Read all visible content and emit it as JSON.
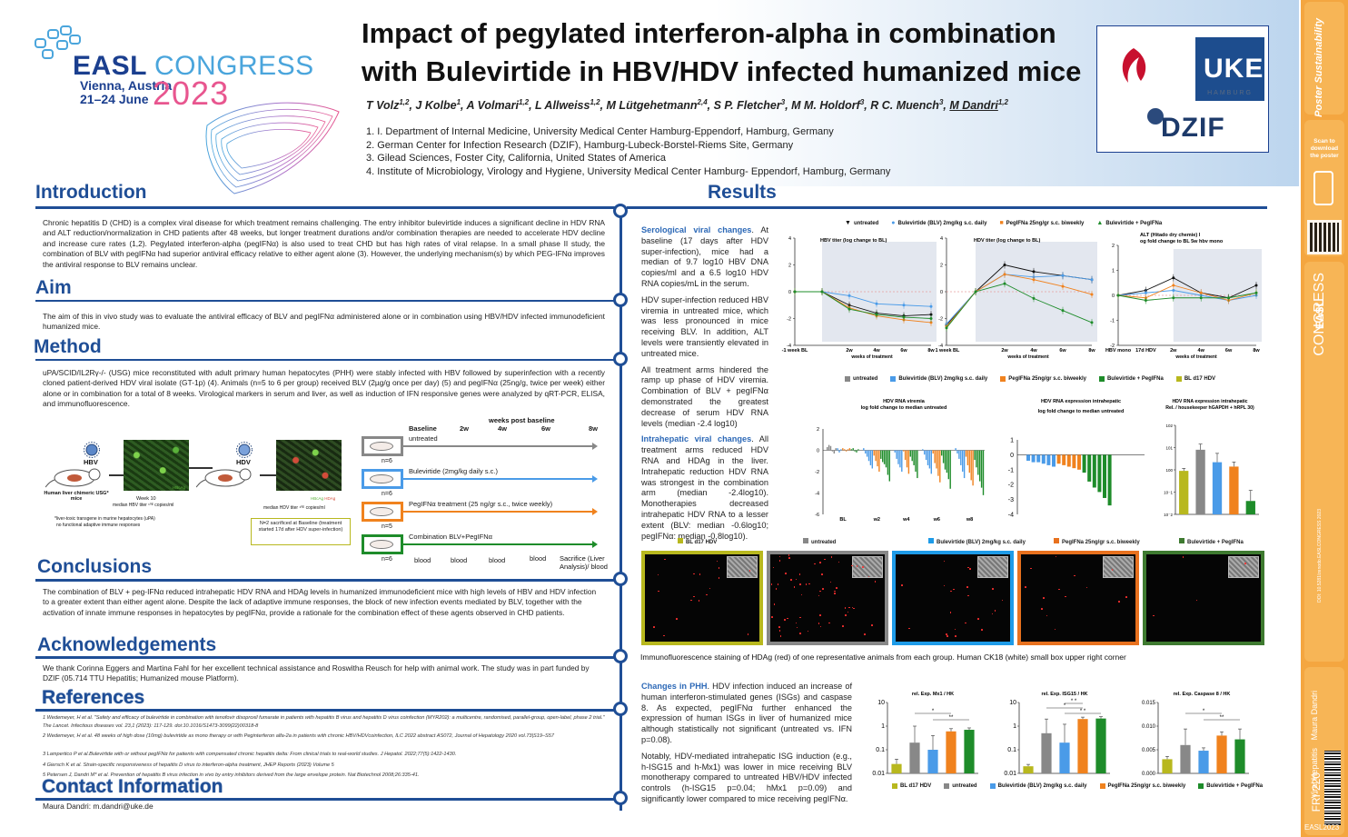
{
  "header": {
    "logo": {
      "brand": "EASL",
      "event": "CONGRESS",
      "city": "Vienna, Austria",
      "dates": "21–24 June",
      "year": "2023"
    },
    "title_line1": "Impact of pegylated interferon-alpha in combination",
    "title_line2": "with Bulevirtide in HBV/HDV infected humanized mice",
    "authors": [
      {
        "name": "T Volz",
        "sup": "1,2"
      },
      {
        "name": "J Kolbe",
        "sup": "1"
      },
      {
        "name": "A Volmari",
        "sup": "1,2"
      },
      {
        "name": "L Allweiss",
        "sup": "1,2"
      },
      {
        "name": "M Lütgehetmann",
        "sup": "2,4"
      },
      {
        "name": "S P. Fletcher",
        "sup": "3"
      },
      {
        "name": "M M. Holdorf",
        "sup": "3"
      },
      {
        "name": "R C. Muench",
        "sup": "3"
      },
      {
        "name": "M Dandri",
        "sup": "1,2"
      }
    ],
    "affiliations": [
      "1. I. Department of Internal Medicine, University Medical Center Hamburg-Eppendorf, Hamburg, Germany",
      "2. German Center for Infection Research (DZIF), Hamburg-Lubeck-Borstel-Riems Site, Germany",
      "3. Gilead Sciences, Foster City, California, United States of America",
      "4. Institute of Microbiology, Virology and Hygiene, University Medical Center Hamburg- Eppendorf, Hamburg, Germany"
    ],
    "partner_logos": {
      "uke": "UKE",
      "uke_sub": "HAMBURG",
      "dzif": "DZIF"
    }
  },
  "sidebar": {
    "poster_label": "Poster Sustainability",
    "scan_text": "Scan to download the poster",
    "congress": "CONGRESS",
    "easl": "EASL",
    "copyright": "DOI: 10.5281/zenodo.EASLCONGRESS 2023",
    "topic": "Viral Hepatitis",
    "presenter": "Maura Dandri",
    "code": "FRI-220",
    "footer": "EASL2023"
  },
  "sections": {
    "introduction": "Introduction",
    "aim": "Aim",
    "method": "Method",
    "conclusions": "Conclusions",
    "acknowledgements": "Acknowledgements",
    "references": "References",
    "contact": "Contact Information",
    "results": "Results"
  },
  "intro_text": "Chronic hepatitis D (CHD) is a complex viral disease for which treatment remains challenging. The entry inhibitor bulevirtide induces a significant decline in HDV RNA and ALT reduction/normalization in CHD patients after 48 weeks, but longer treatment durations and/or combination therapies are needed to accelerate HDV decline and increase cure rates (1,2). Pegylated interferon-alpha (pegIFNα) is also used to treat CHD but has high rates of viral relapse. In a small phase II study, the combination of BLV with pegIFNα had superior antiviral efficacy relative to either agent alone (3). However, the underlying mechanism(s) by which PEG-IFNα improves the antiviral response to BLV remains unclear.",
  "aim_text": "The aim of this in vivo study was to evaluate the antiviral efficacy of BLV and pegIFNα administered alone or in combination using HBV/HDV infected immunodeficient humanized mice.",
  "method_text": "uPA/SCID/IL2Rγ-/- (USG) mice reconstituted with adult primary human hepatocytes (PHH) were stably infected with HBV followed by superinfection with a recently cloned patient-derived HDV viral isolate (GT-1p) (4). Animals (n=5 to 6 per group) received BLV (2µg/g once per day) (5) and pegIFNα (25ng/g, twice per week) either alone or in combination for a total of 8 weeks. Virological markers in serum and liver, as well as induction of IFN responsive genes were analyzed by qRT-PCR, ELISA, and immunofluorescence.",
  "method_fig": {
    "hbv": "HBV",
    "hdv": "HDV",
    "mouse_label": "Human liver chimeric USG* mice",
    "week10": "Week 10",
    "hbv_titer": "median HBV titer ¹⁰ᴱ copies/ml",
    "hdv_titer": "median HDV titer ¹⁰ᴱ copies/ml",
    "hbag": "HBcAg",
    "hdag": "HDAg",
    "footnote1": "*liver-toxic transgene in murine hepatocytes (uPA)",
    "footnote2": "no functional adaptive immune responses",
    "n2_note": "N=2 sacrificed at Baseline (treatment started 17d after HDV super-infection)",
    "timeline_head": "weeks post baseline",
    "timeline_ticks": [
      "Baseline",
      "2w",
      "4w",
      "6w",
      "8w"
    ],
    "groups": [
      {
        "label": "untreated",
        "n": "n=6",
        "color": "#888888"
      },
      {
        "label": "Bulevirtide (2mg/kg daily s.c.)",
        "n": "n=6",
        "color": "#4a9be8"
      },
      {
        "label": "PegIFNα treatment (25 ng/gr s.c., twice weekly)",
        "n": "n=5",
        "color": "#f0821e"
      },
      {
        "label": "Combination BLV+PegIFNα",
        "n": "n=6",
        "color": "#1e8c2a"
      }
    ],
    "bloods": [
      "blood",
      "blood",
      "blood",
      "blood"
    ],
    "sacrifice": "Sacrifice (Liver Analysis)/ blood"
  },
  "conclusions_text": "The combination of BLV + peg-IFNα reduced intrahepatic HDV RNA and HDAg levels in humanized immunodeficient mice with high levels of HBV and HDV infection to a greater extent than either agent alone. Despite the lack of adaptive immune responses, the block of new infection events mediated by BLV, together with the activation of innate immune responses in hepatocytes by pegIFNα, provide a rationale for the combination effect of these agents observed in CHD patients.",
  "ack_text": "We thank Corinna Eggers and Martina Fahl for her excellent technical assistance and Roswitha Reusch for help with animal work. The study was in part funded by DZIF (05.714 TTU Hepatitis; Humanized mouse Platform).",
  "references": [
    "1 Wedemeyer, H et al. \"Safety and efficacy of bulevirtide in combination with tenofovir disoproxil fumarate in patients with hepatitis B virus and hepatitis D virus coinfection (MYR202): a multicentre, randomised, parallel-group, open-label, phase 2 trial.\" The Lancet. Infectious diseases vol. 23,1 (2023): 117-129. doi:10.1016/S1473-3099(22)00318-8",
    "2 Wedemeyer, H et al. 48 weeks of high dose (10mg) bulevirtide as mono therapy or with Peginterferon alfa-2a in patients with chronic HBV/HDVcoinfection, ILC 2022 abstract AS072, Journal of Hepatology 2020 vol.73|S19–S57",
    "3 Lampertico P et al.Bulevirtide with or without pegIFNα for patients with compensated chronic hepatitis delta: From clinical trials to real-world studies. J Hepatol. 2022;77(5):1422-1430.",
    "4 Giersch K et al. Strain-specific responsiveness of hepatitis D virus to interferon-alpha treatment, JHEP Reports (2023) Volume 5",
    "5 Petersen J, Dandri M* et al. Prevention of hepatitis B virus infection in vivo by entry inhibitors derived from the large envelope protein. Nat Biotechnol 2008;26:335-41."
  ],
  "contact_text": "Maura Dandri: m.dandri@uke.de",
  "results": {
    "sero_head": "Serological viral changes",
    "sero_p1": ". At baseline (17 days after HDV super-infection), mice had a median of 9.7 log10 HBV DNA copies/ml and a 6.5 log10 HDV RNA copies/mL in the serum.",
    "sero_p2": "HDV super-infection reduced HBV viremia in untreated mice, which was less pronounced in mice receiving BLV. In addition, ALT levels were transiently elevated in untreated mice.",
    "sero_p3": "All treatment arms hindered the ramp up phase of HDV viremia. Combination of BLV + pegIFNα demonstrated the greatest decrease of serum HDV RNA levels (median -2.4 log10)",
    "intra_head": "Intrahepatic viral changes",
    "intra_p": ". All treatment arms reduced HDV RNA and HDAg in the liver. Intrahepatic reduction HDV RNA was strongest in the combination arm (median -2.4log10). Monotherapies decreased intrahepatic HDV RNA to a lesser extent (BLV: median -0.6log10; pegIFNα: median -0.8log10).",
    "phh_head": "Changes in PHH",
    "phh_p1": ". HDV infection induced an increase of human interferon-stimulated genes (ISGs) and caspase 8. As expected, pegIFNα further enhanced the expression of human ISGs in liver of humanized mice although statistically not significant (untreated vs. IFN p=0.08).",
    "phh_p2": "Notably, HDV-mediated intrahepatic ISG induction (e.g., h-ISG15 and h-Mx1) was lower in mice receiving BLV monotherapy compared to untreated HBV/HDV infected controls (h-ISG15 p=0.04; hMx1 p=0.09) and significantly lower compared to mice receiving pegIFNα.",
    "if_caption": "Immunofluorescence staining of HDAg (red) of one representative animals from each group. Human CK18 (white) small box upper right corner"
  },
  "legend_top": [
    {
      "label": "untreated",
      "color": "#111111",
      "marker": "▼"
    },
    {
      "label": "Bulevirtide (BLV) 2mg/kg s.c. daily",
      "color": "#4a9be8",
      "marker": "●"
    },
    {
      "label": "PegIFNa 25ng/gr s.c. biweekly",
      "color": "#f0821e",
      "marker": "■"
    },
    {
      "label": "Bulevirtide + PegIFNa",
      "color": "#1e8c2a",
      "marker": "▲"
    }
  ],
  "legend_mid": [
    {
      "label": "untreated",
      "color": "#888888"
    },
    {
      "label": "Bulevirtide (BLV) 2mg/kg s.c. daily",
      "color": "#4a9be8"
    },
    {
      "label": "PegIFNa 25ng/gr s.c. biweekly",
      "color": "#f0821e"
    },
    {
      "label": "Bulevirtide + PegIFNa",
      "color": "#1e8c2a"
    },
    {
      "label": "BL d17 HDV",
      "color": "#b8b81e"
    }
  ],
  "legend_bottom": [
    {
      "label": "BL d17 HDV",
      "color": "#b8b81e"
    },
    {
      "label": "untreated",
      "color": "#888888"
    },
    {
      "label": "Bulevirtide (BLV) 2mg/kg s.c. daily",
      "color": "#4a9be8"
    },
    {
      "label": "PegIFNa 25ng/gr s.c. biweekly",
      "color": "#f0821e"
    },
    {
      "label": "Bulevirtide + PegIFNa",
      "color": "#1e8c2a"
    }
  ],
  "if_panels": [
    {
      "label": "BL d17 HDV",
      "color": "#b8b81e",
      "density": 18
    },
    {
      "label": "untreated",
      "color": "#888888",
      "density": 60
    },
    {
      "label": "Bulevirtide (BLV) 2mg/kg s.c. daily",
      "color": "#1e9be8",
      "density": 22
    },
    {
      "label": "PegIFNa 25ng/gr s.c. biweekly",
      "color": "#e8711e",
      "density": 14
    },
    {
      "label": "Bulevirtide + PegIFNa",
      "color": "#3e7a30",
      "density": 4
    }
  ],
  "chart_data": [
    {
      "type": "line",
      "title": "HBV titer (log change to BL)",
      "categories": [
        "-1 week BL",
        "",
        "2w",
        "4w",
        "6w",
        "8w"
      ],
      "xlabel": "weeks of treatment",
      "ylim": [
        -4,
        4
      ],
      "yticks": [
        -4,
        -2,
        0,
        2,
        4
      ],
      "series": [
        {
          "name": "untreated",
          "color": "#111111",
          "values": [
            0,
            0,
            -1.0,
            -1.6,
            -1.8,
            -1.7
          ]
        },
        {
          "name": "Bulevirtide (BLV) 2mg/kg s.c. daily",
          "color": "#4a9be8",
          "values": [
            0,
            0,
            -0.3,
            -0.9,
            -1.0,
            -1.1
          ]
        },
        {
          "name": "PegIFNa 25ng/gr s.c. biweekly",
          "color": "#f0821e",
          "values": [
            0,
            0,
            -1.2,
            -1.8,
            -2.1,
            -2.3
          ]
        },
        {
          "name": "Bulevirtide + PegIFNa",
          "color": "#1e8c2a",
          "values": [
            0,
            0,
            -1.3,
            -1.7,
            -1.9,
            -2.0
          ]
        }
      ]
    },
    {
      "type": "line",
      "title": "HDV titer (log change to BL)",
      "categories": [
        "-1 week BL",
        "",
        "2w",
        "4w",
        "6w",
        "8w"
      ],
      "xlabel": "weeks of treatment",
      "ylim": [
        -4,
        4
      ],
      "yticks": [
        -4,
        -2,
        0,
        2,
        4
      ],
      "series": [
        {
          "name": "untreated",
          "color": "#111111",
          "values": [
            -2.5,
            0,
            2.0,
            1.5,
            1.2,
            0.9
          ]
        },
        {
          "name": "Bulevirtide (BLV) 2mg/kg s.c. daily",
          "color": "#4a9be8",
          "values": [
            -2.4,
            0,
            1.3,
            1.1,
            1.2,
            0.9
          ]
        },
        {
          "name": "PegIFNa 25ng/gr s.c. biweekly",
          "color": "#f0821e",
          "values": [
            -2.6,
            0,
            1.3,
            0.9,
            0.4,
            -0.2
          ]
        },
        {
          "name": "Bulevirtide + PegIFNa",
          "color": "#1e8c2a",
          "values": [
            -2.7,
            0,
            0.6,
            -0.5,
            -1.4,
            -2.3
          ]
        }
      ]
    },
    {
      "type": "line",
      "title": "ALT (Hitado dry chemie) log fold change to BL 5w hbv mono",
      "categories": [
        "HBV mono",
        "17d HDV",
        "2w",
        "4w",
        "6w",
        "8w"
      ],
      "xlabel": "weeks of treatment",
      "ylim": [
        -2,
        2
      ],
      "yticks": [
        -2,
        -1,
        0,
        1,
        2
      ],
      "series": [
        {
          "name": "untreated",
          "color": "#111111",
          "values": [
            0,
            0.2,
            0.7,
            0.1,
            -0.1,
            0.4
          ]
        },
        {
          "name": "Bulevirtide (BLV) 2mg/kg s.c. daily",
          "color": "#4a9be8",
          "values": [
            0,
            0.1,
            0.2,
            0.0,
            -0.2,
            0.0
          ]
        },
        {
          "name": "PegIFNa 25ng/gr s.c. biweekly",
          "color": "#f0821e",
          "values": [
            0,
            -0.1,
            0.4,
            0.1,
            -0.2,
            0.1
          ]
        },
        {
          "name": "Bulevirtide + PegIFNa",
          "color": "#1e8c2a",
          "values": [
            0,
            -0.2,
            -0.1,
            -0.1,
            -0.1,
            0.1
          ]
        }
      ]
    },
    {
      "type": "bar",
      "title": "HDV RNA viremia log fold change to median untreated",
      "categories": [
        "BL",
        "w2",
        "w4",
        "w6",
        "w8"
      ],
      "ylim": [
        -6,
        2
      ],
      "yticks": [
        -6,
        -4,
        -2,
        0,
        2
      ]
    },
    {
      "type": "bar",
      "title": "HDV RNA expression intrahepatic log fold change to median untreated",
      "ylim": [
        -4,
        1
      ],
      "yticks": [
        -4,
        -3,
        -2,
        -1,
        0,
        1
      ],
      "series": [
        {
          "name": "Bulevirtide (BLV) 2mg/kg s.c. daily",
          "color": "#4a9be8",
          "values": [
            -0.4,
            -0.5,
            -0.5,
            -0.6,
            -0.7,
            -0.8
          ]
        },
        {
          "name": "PegIFNa 25ng/gr s.c. biweekly",
          "color": "#f0821e",
          "values": [
            -0.6,
            -0.7,
            -0.8,
            -0.9,
            -1.0
          ]
        },
        {
          "name": "Bulevirtide + PegIFNa",
          "color": "#1e8c2a",
          "values": [
            -1.2,
            -1.8,
            -2.2,
            -2.5,
            -2.9,
            -3.4
          ]
        }
      ]
    },
    {
      "type": "bar",
      "title": "HDV RNA expression intrahepatic Rel. / housekeeper hGAPDH + hRPL 30)",
      "log": true,
      "ylim": [
        0.01,
        100
      ],
      "categories": [
        "BL d17 HDV",
        "untreated",
        "Bulevirtide (BLV) 2mg/kg s.c. daily",
        "PegIFNa 25ng/gr s.c. biweekly",
        "Bulevirtide + PegIFNa"
      ],
      "values": [
        0.9,
        8,
        2.2,
        1.4,
        0.04
      ],
      "colors": [
        "#b8b81e",
        "#888888",
        "#4a9be8",
        "#f0821e",
        "#1e8c2a"
      ]
    },
    {
      "type": "bar",
      "title": "rel. Exp. Mx1 / HK",
      "log": true,
      "ylim": [
        0.01,
        10
      ],
      "categories": [
        "BL d17 HDV",
        "untreated",
        "Bulevirtide (BLV) 2mg/kg s.c. daily",
        "PegIFNa 25ng/gr s.c. biweekly",
        "Bulevirtide + PegIFNa"
      ],
      "values": [
        0.025,
        0.2,
        0.1,
        0.6,
        0.7
      ],
      "colors": [
        "#b8b81e",
        "#888888",
        "#4a9be8",
        "#f0821e",
        "#1e8c2a"
      ],
      "annotations": [
        "*",
        "**"
      ]
    },
    {
      "type": "bar",
      "title": "rel. Exp. ISG15 / HK",
      "log": true,
      "ylim": [
        0.01,
        10
      ],
      "categories": [
        "BL d17 HDV",
        "untreated",
        "Bulevirtide (BLV) 2mg/kg s.c. daily",
        "PegIFNa 25ng/gr s.c. biweekly",
        "Bulevirtide + PegIFNa"
      ],
      "values": [
        0.02,
        0.5,
        0.2,
        2.0,
        2.1
      ],
      "colors": [
        "#b8b81e",
        "#888888",
        "#4a9be8",
        "#f0821e",
        "#1e8c2a"
      ],
      "annotations": [
        "*",
        "* *",
        "* *"
      ]
    },
    {
      "type": "bar",
      "title": "rel. Exp. Caspase 8 / HK",
      "ylim": [
        0,
        0.015
      ],
      "yticks": [
        0,
        0.005,
        0.01,
        0.015
      ],
      "categories": [
        "BL d17 HDV",
        "untreated",
        "Bulevirtide (BLV) 2mg/kg s.c. daily",
        "PegIFNa 25ng/gr s.c. biweekly",
        "Bulevirtide + PegIFNa"
      ],
      "values": [
        0.003,
        0.006,
        0.0048,
        0.008,
        0.0072
      ],
      "colors": [
        "#b8b81e",
        "#888888",
        "#4a9be8",
        "#f0821e",
        "#1e8c2a"
      ],
      "annotations": [
        "*",
        "**"
      ]
    }
  ]
}
